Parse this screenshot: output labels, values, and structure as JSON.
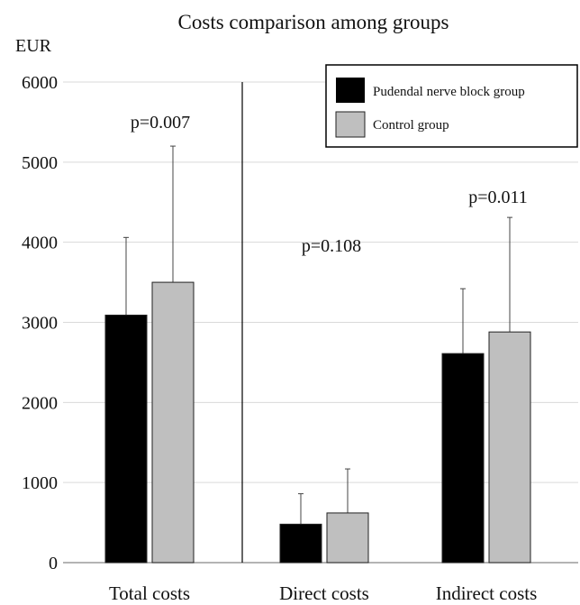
{
  "chart_data": {
    "type": "bar",
    "title": "Costs comparison among groups",
    "ylabel": "EUR",
    "xlabel": "",
    "ylim": [
      0,
      6000
    ],
    "yticks": [
      "0",
      "1000",
      "2000",
      "3000",
      "4000",
      "5000",
      "6000"
    ],
    "categories": [
      "Total costs",
      "Direct costs",
      "Indirect costs"
    ],
    "series": [
      {
        "name": "Pudendal nerve block group",
        "color": "#000000",
        "values": [
          3090,
          480,
          2610
        ],
        "error": [
          970,
          380,
          810
        ]
      },
      {
        "name": "Control group",
        "color": "#bfbfbf",
        "values": [
          3500,
          620,
          2880
        ],
        "error": [
          1700,
          550,
          1430
        ]
      }
    ],
    "annotations": [
      "p=0.007",
      "p=0.108",
      "p=0.011"
    ],
    "grid": true,
    "legend": "top-right"
  }
}
